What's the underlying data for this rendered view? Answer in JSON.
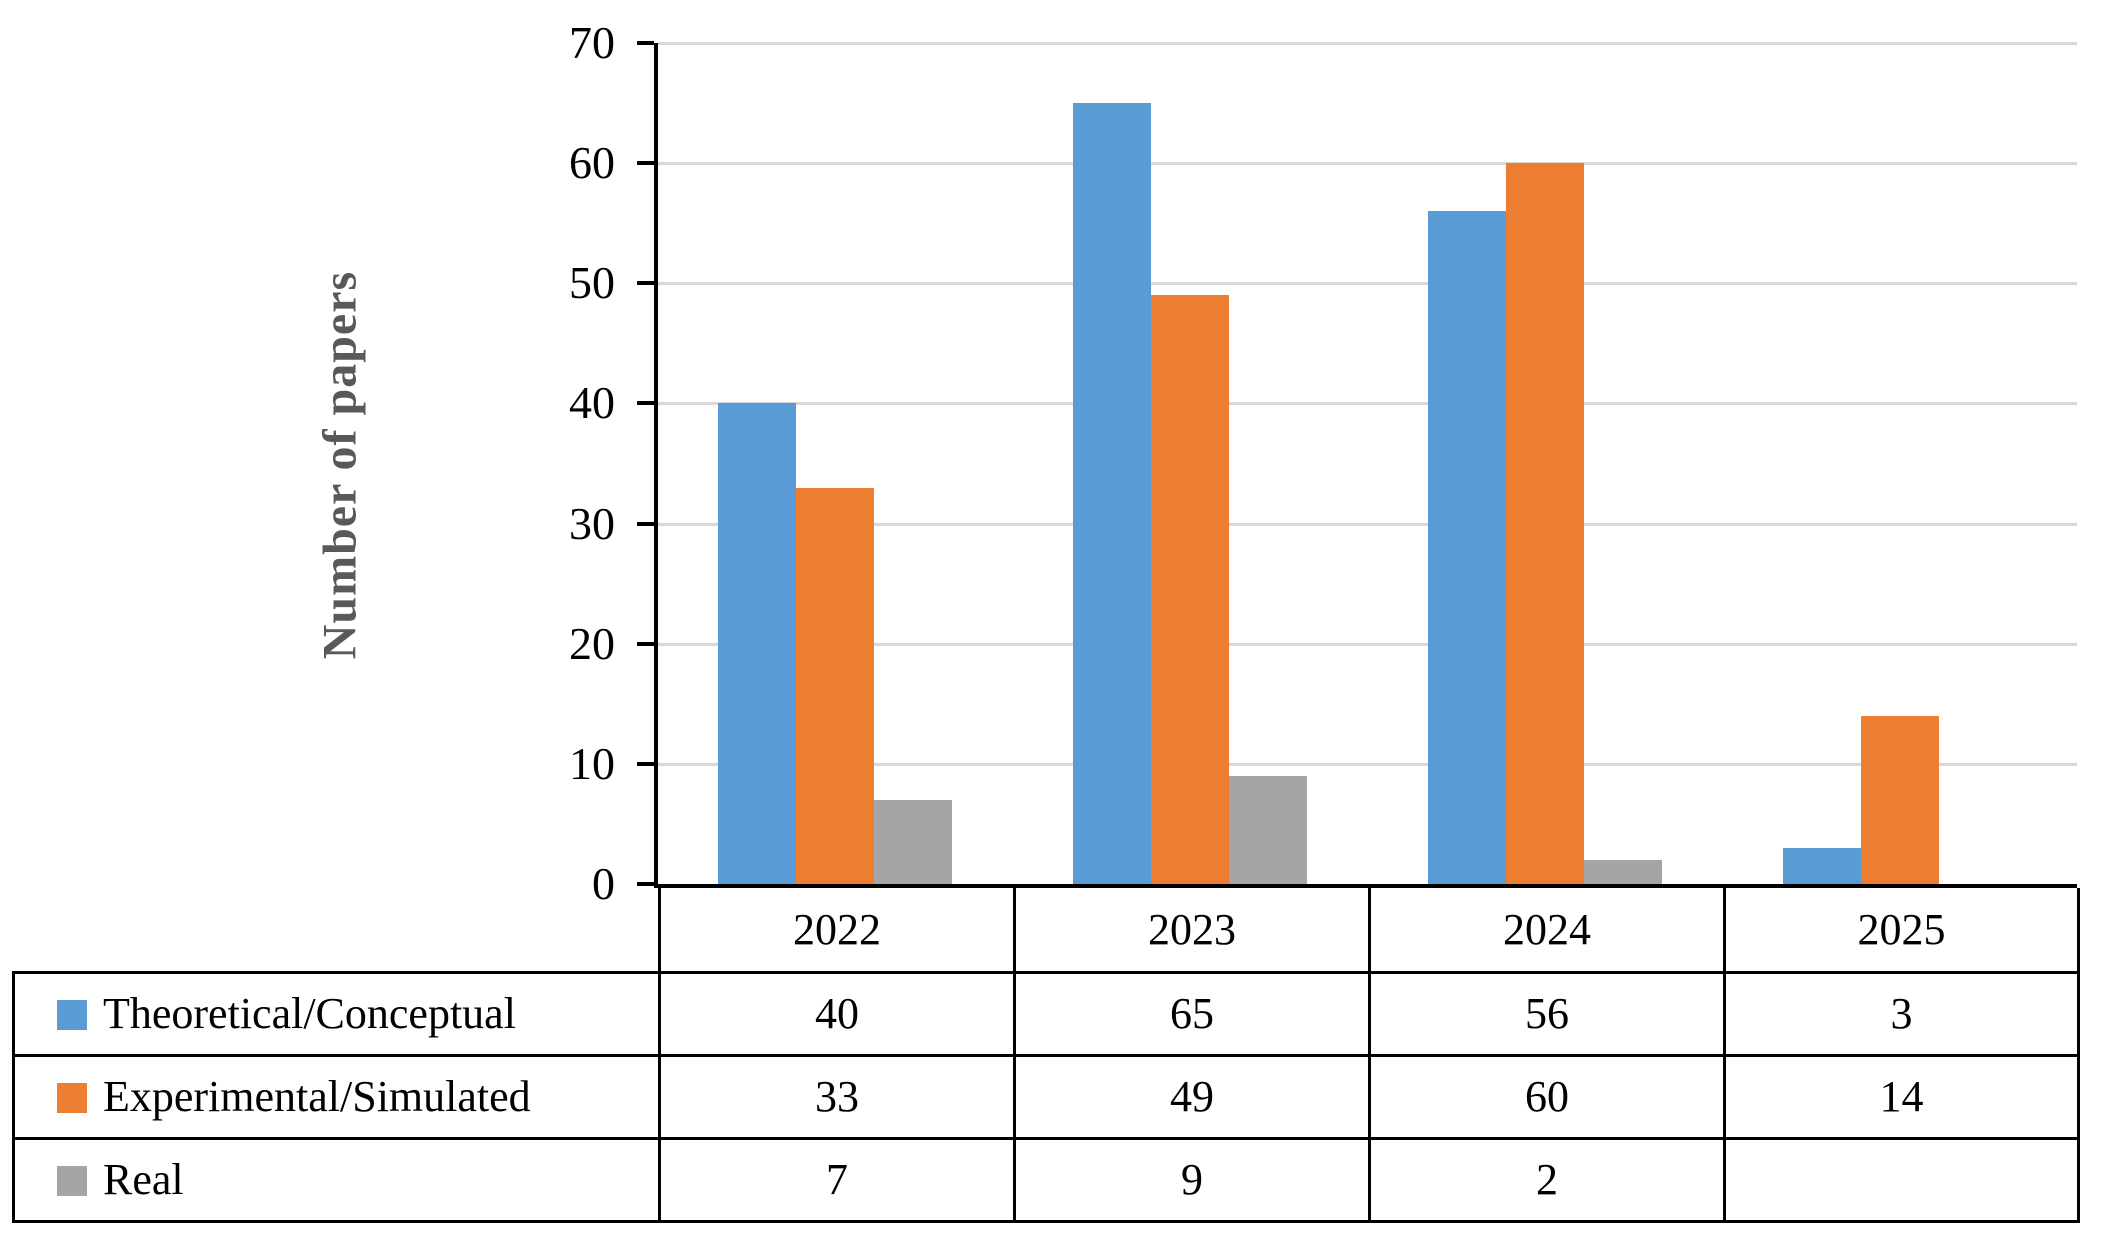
{
  "chart_data": {
    "type": "bar",
    "title": "",
    "xlabel": "",
    "ylabel": "Number of papers",
    "ylim": [
      0,
      70
    ],
    "yticks": [
      0,
      10,
      20,
      30,
      40,
      50,
      60,
      70
    ],
    "grid": true,
    "legend_position": "table-left",
    "categories": [
      "2022",
      "2023",
      "2024",
      "2025"
    ],
    "series": [
      {
        "name": "Theoretical/Conceptual",
        "color": "#5B9BD5",
        "values": [
          40,
          65,
          56,
          3
        ],
        "display": [
          "40",
          "65",
          "56",
          "3"
        ]
      },
      {
        "name": "Experimental/Simulated",
        "color": "#ED7D31",
        "values": [
          33,
          49,
          60,
          14
        ],
        "display": [
          "33",
          "49",
          "60",
          "14"
        ]
      },
      {
        "name": "Real",
        "color": "#A5A5A5",
        "values": [
          7,
          9,
          2,
          null
        ],
        "display": [
          "7",
          "9",
          "2",
          ""
        ]
      }
    ],
    "colors": {
      "axis": "#000000",
      "gridline": "#D9D9D9",
      "ylabel_text": "#595959",
      "table_border": "#000000",
      "background": "#ffffff"
    }
  }
}
